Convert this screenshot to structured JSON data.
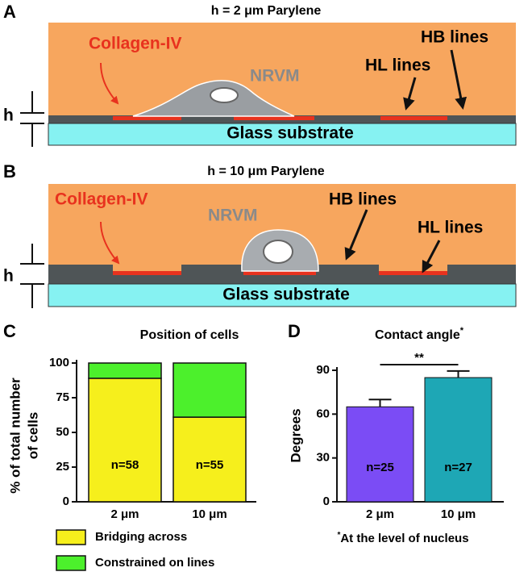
{
  "diagrams": [
    {
      "panel": "A",
      "title": "h = 2 μm Parylene",
      "collagen": "Collagen-IV",
      "cell": "NRVM",
      "hb": "HB lines",
      "hl": "HL lines",
      "substrate": "Glass substrate",
      "h": "h"
    },
    {
      "panel": "B",
      "title": "h = 10 μm Parylene",
      "collagen": "Collagen-IV",
      "cell": "NRVM",
      "hb": "HB lines",
      "hl": "HL lines",
      "substrate": "Glass substrate",
      "h": "h"
    }
  ],
  "chart_data": [
    {
      "type": "stacked_bar",
      "panel": "C",
      "title": "Position of cells",
      "ylabel": [
        "% of total number",
        "of cells"
      ],
      "categories": [
        "2 μm",
        "10 μm"
      ],
      "annotations": [
        "n=58",
        "n=55"
      ],
      "series": [
        {
          "name": "Bridging across",
          "color": "#f6ef1c",
          "values": [
            89,
            61
          ]
        },
        {
          "name": "Constrained on lines",
          "color": "#4cf02c",
          "values": [
            11,
            39
          ]
        }
      ],
      "ylim": [
        0,
        100
      ],
      "yticks": [
        0,
        25,
        50,
        75,
        100
      ]
    },
    {
      "type": "bar",
      "panel": "D",
      "title": "Contact angle",
      "title_mark": "*",
      "ylabel": "Degrees",
      "categories": [
        "2 μm",
        "10 μm"
      ],
      "annotations": [
        "n=25",
        "n=27"
      ],
      "significance": "**",
      "colors": [
        "#7b4cf5",
        "#1ea7b5"
      ],
      "values": [
        65,
        85
      ],
      "errors": [
        5,
        4.5
      ],
      "ylim": [
        0,
        90
      ],
      "yticks": [
        0,
        30,
        60,
        90
      ],
      "footnote_mark": "*",
      "footnote": "At the level of nucleus"
    }
  ]
}
